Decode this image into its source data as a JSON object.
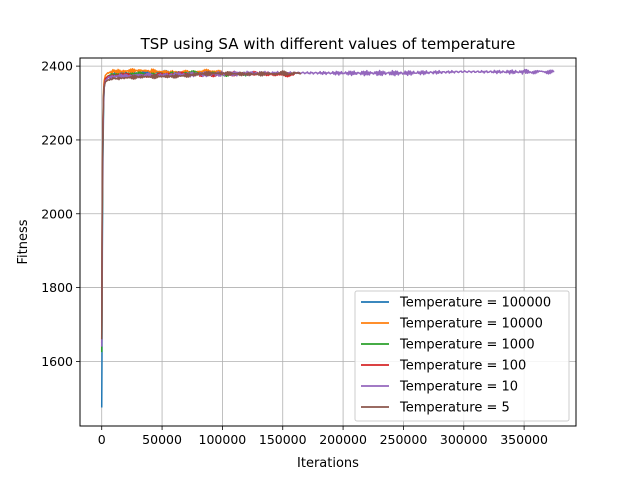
{
  "chart_data": {
    "type": "line",
    "title": "TSP using SA with different values of temperature",
    "xlabel": "Iterations",
    "ylabel": "Fitness",
    "xlim": [
      -18000,
      393000
    ],
    "ylim": [
      1425,
      2422
    ],
    "xticks": [
      0,
      50000,
      100000,
      150000,
      200000,
      250000,
      300000,
      350000
    ],
    "xtick_labels": [
      "0",
      "50000",
      "100000",
      "150000",
      "200000",
      "250000",
      "300000",
      "350000"
    ],
    "yticks": [
      1600,
      1800,
      2000,
      2200,
      2400
    ],
    "ytick_labels": [
      "1600",
      "1800",
      "2000",
      "2200",
      "2400"
    ],
    "grid": true,
    "legend_position": "lower-right",
    "series": [
      {
        "name": "Temperature = 100000",
        "color": "#1f77b4",
        "x": [
          0,
          200,
          500,
          1000,
          1500,
          2000,
          3000,
          5000,
          10000,
          20000,
          40000,
          60000,
          80000
        ],
        "y": [
          1475,
          1600,
          1900,
          2150,
          2280,
          2340,
          2365,
          2372,
          2378,
          2380,
          2381,
          2382,
          2382
        ]
      },
      {
        "name": "Temperature = 10000",
        "color": "#ff7f0e",
        "x": [
          0,
          200,
          500,
          1000,
          1500,
          2000,
          3000,
          5000,
          10000,
          20000,
          40000,
          60000,
          80000,
          100000
        ],
        "y": [
          1630,
          1800,
          2050,
          2250,
          2330,
          2360,
          2375,
          2382,
          2385,
          2386,
          2386,
          2385,
          2384,
          2384
        ]
      },
      {
        "name": "Temperature = 1000",
        "color": "#2ca02c",
        "x": [
          0,
          200,
          500,
          1000,
          1500,
          2000,
          3000,
          5000,
          10000,
          20000,
          40000,
          60000,
          80000,
          100000,
          120000
        ],
        "y": [
          1625,
          1780,
          2000,
          2200,
          2300,
          2345,
          2365,
          2373,
          2377,
          2378,
          2379,
          2380,
          2380,
          2379,
          2379
        ]
      },
      {
        "name": "Temperature = 100",
        "color": "#d62728",
        "x": [
          0,
          200,
          500,
          1000,
          1500,
          2000,
          3000,
          5000,
          10000,
          20000,
          40000,
          60000,
          80000,
          100000,
          120000,
          140000,
          160000
        ],
        "y": [
          1650,
          1820,
          2050,
          2230,
          2310,
          2350,
          2366,
          2372,
          2375,
          2376,
          2376,
          2377,
          2378,
          2378,
          2379,
          2379,
          2378
        ]
      },
      {
        "name": "Temperature = 10",
        "color": "#9467bd",
        "x": [
          0,
          200,
          500,
          1000,
          1500,
          2000,
          3000,
          5000,
          10000,
          25000,
          50000,
          100000,
          150000,
          200000,
          250000,
          300000,
          350000,
          375000
        ],
        "y": [
          1640,
          1800,
          2030,
          2220,
          2300,
          2340,
          2360,
          2368,
          2372,
          2374,
          2376,
          2379,
          2382,
          2381,
          2381,
          2385,
          2384,
          2385
        ]
      },
      {
        "name": "Temperature = 5",
        "color": "#8c564b",
        "x": [
          0,
          200,
          500,
          1000,
          1500,
          2000,
          3000,
          5000,
          10000,
          20000,
          40000,
          60000,
          80000,
          100000,
          120000,
          140000,
          165000
        ],
        "y": [
          1660,
          1850,
          2080,
          2250,
          2320,
          2345,
          2357,
          2362,
          2366,
          2368,
          2370,
          2374,
          2378,
          2379,
          2380,
          2380,
          2380
        ]
      }
    ]
  }
}
